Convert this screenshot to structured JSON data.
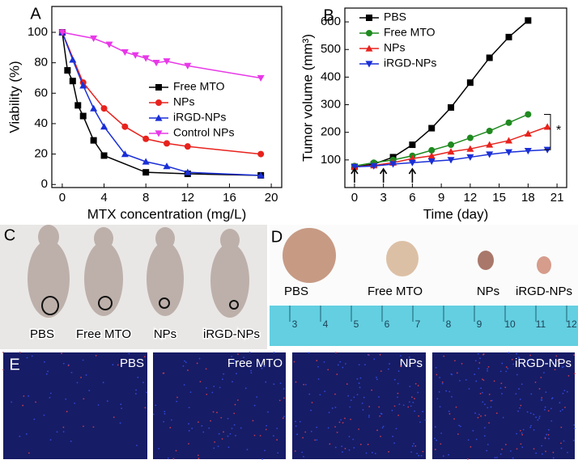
{
  "chart_data": [
    {
      "type": "line",
      "panel": "A",
      "x_label": "MTX concentration (mg/L)",
      "y_label": "Viability (%)",
      "xlim": [
        -1,
        21
      ],
      "xticks": [
        0,
        4,
        8,
        12,
        16,
        20
      ],
      "ylim": [
        -2,
        117
      ],
      "yticks": [
        0,
        20,
        40,
        60,
        80,
        100
      ],
      "legend": "right",
      "series": [
        {
          "name": "Free MTO",
          "color": "#000000",
          "marker": "square",
          "x": [
            0,
            0.5,
            1,
            1.5,
            2,
            3,
            4,
            8,
            12,
            19
          ],
          "values": [
            100,
            75,
            68,
            52,
            45,
            29,
            19,
            8,
            7,
            6
          ]
        },
        {
          "name": "NPs",
          "color": "#e8221d",
          "marker": "circle",
          "x": [
            0,
            2,
            4,
            6,
            8,
            10,
            12,
            19
          ],
          "values": [
            100,
            67,
            50,
            38,
            30,
            27,
            25,
            20
          ]
        },
        {
          "name": "iRGD-NPs",
          "color": "#1a2fd6",
          "marker": "triangle-up",
          "x": [
            0,
            1,
            2,
            3,
            4,
            6,
            8,
            10,
            12,
            19
          ],
          "values": [
            100,
            82,
            65,
            50,
            38,
            20,
            15,
            12,
            8,
            6
          ]
        },
        {
          "name": "Control NPs",
          "color": "#e838e8",
          "marker": "triangle-down",
          "x": [
            0,
            3,
            4.5,
            6,
            7,
            8,
            9,
            10,
            12,
            19
          ],
          "values": [
            100,
            96,
            92,
            87,
            85,
            83,
            80,
            81,
            78,
            70
          ]
        }
      ]
    },
    {
      "type": "line",
      "panel": "B",
      "x_label": "Time (day)",
      "y_label": "Tumor volume (mm³)",
      "xlim": [
        -1,
        22
      ],
      "xticks": [
        0,
        3,
        6,
        9,
        12,
        15,
        18,
        21
      ],
      "ylim": [
        0,
        650
      ],
      "yticks": [
        100,
        200,
        300,
        400,
        500,
        600
      ],
      "legend": "upper left",
      "treatment_days": [
        0,
        3,
        6
      ],
      "annotation": "*",
      "series": [
        {
          "name": "PBS",
          "color": "#000000",
          "marker": "square",
          "x": [
            0,
            2,
            4,
            6,
            8,
            10,
            12,
            14,
            16,
            18
          ],
          "values": [
            75,
            85,
            110,
            155,
            215,
            290,
            380,
            470,
            545,
            605
          ]
        },
        {
          "name": "Free MTO",
          "color": "#1f8a1f",
          "marker": "circle",
          "x": [
            0,
            2,
            4,
            6,
            8,
            10,
            12,
            14,
            16,
            18
          ],
          "values": [
            78,
            90,
            100,
            115,
            135,
            155,
            180,
            205,
            235,
            265
          ]
        },
        {
          "name": "NPs",
          "color": "#e8221d",
          "marker": "triangle-up",
          "x": [
            0,
            2,
            4,
            6,
            8,
            10,
            12,
            14,
            16,
            18,
            20
          ],
          "values": [
            75,
            80,
            90,
            105,
            115,
            130,
            140,
            155,
            170,
            195,
            220
          ]
        },
        {
          "name": "iRGD-NPs",
          "color": "#1a2fd6",
          "marker": "triangle-down",
          "x": [
            0,
            2,
            4,
            6,
            8,
            10,
            12,
            14,
            16,
            18,
            20
          ],
          "values": [
            75,
            78,
            85,
            90,
            95,
            100,
            110,
            120,
            128,
            133,
            137
          ]
        }
      ]
    }
  ],
  "photos": [
    {
      "panel": "C",
      "labels": [
        "PBS",
        "Free MTO",
        "NPs",
        "iRGD-NPs"
      ]
    },
    {
      "panel": "D",
      "labels": [
        "PBS",
        "Free MTO",
        "NPs",
        "iRGD-NPs"
      ],
      "ruler_labels": [
        "3",
        "4",
        "5",
        "6",
        "7",
        "8",
        "9",
        "10",
        "11",
        "12"
      ]
    },
    {
      "panel": "E",
      "labels": [
        "PBS",
        "Free MTO",
        "NPs",
        "iRGD-NPs"
      ]
    }
  ]
}
